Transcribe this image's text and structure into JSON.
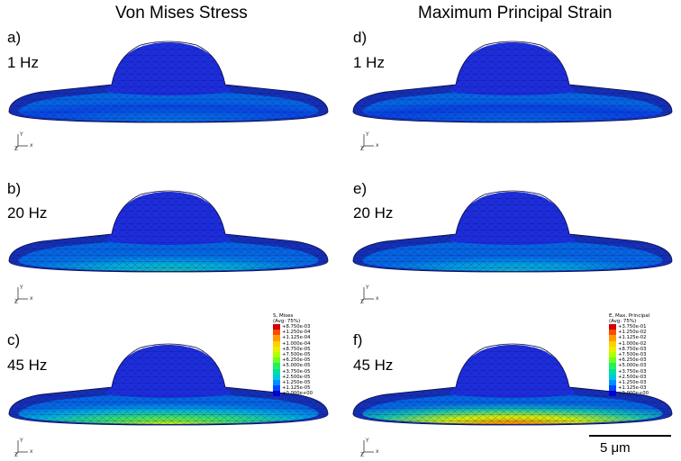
{
  "titles": {
    "left": "Von Mises Stress",
    "right": "Maximum Principal Strain"
  },
  "panels": [
    {
      "label": "a)",
      "freq": "1 Hz",
      "heat": 0.15
    },
    {
      "label": "b)",
      "freq": "20 Hz",
      "heat": 0.35
    },
    {
      "label": "c)",
      "freq": "45 Hz",
      "heat": 0.62
    },
    {
      "label": "d)",
      "freq": "1 Hz",
      "heat": 0.12
    },
    {
      "label": "e)",
      "freq": "20 Hz",
      "heat": 0.3
    },
    {
      "label": "f)",
      "freq": "45 Hz",
      "heat": 0.85
    }
  ],
  "axes": {
    "y": "Y",
    "x": "x",
    "z": "Z"
  },
  "legend_stress": {
    "title1": "S, Mises",
    "title2": "(Avg: 75%)",
    "values": [
      "+8.750e-03",
      "+1.250e-04",
      "+1.125e-04",
      "+1.000e-04",
      "+8.750e-05",
      "+7.500e-05",
      "+6.250e-05",
      "+5.000e-05",
      "+3.750e-05",
      "+2.500e-05",
      "+1.250e-05",
      "+1.125e-05",
      "+0.000e+00"
    ]
  },
  "legend_strain": {
    "title1": "E, Max. Principal",
    "title2": "(Avg: 75%)",
    "values": [
      "+3.750e-01",
      "+1.250e-02",
      "+1.125e-02",
      "+1.000e-02",
      "+8.750e-03",
      "+7.500e-03",
      "+6.250e-03",
      "+5.000e-03",
      "+3.750e-03",
      "+2.500e-03",
      "+1.250e-03",
      "+1.125e-03",
      "+0.000e+00"
    ]
  },
  "legend_colors": [
    "#d40000",
    "#ff4a00",
    "#ff9a00",
    "#ffd000",
    "#e8f000",
    "#b4ff00",
    "#6cff20",
    "#22f060",
    "#00e0a0",
    "#00c8e0",
    "#0090ff",
    "#0048ff",
    "#0000d0"
  ],
  "scale_bar": "5 μm"
}
